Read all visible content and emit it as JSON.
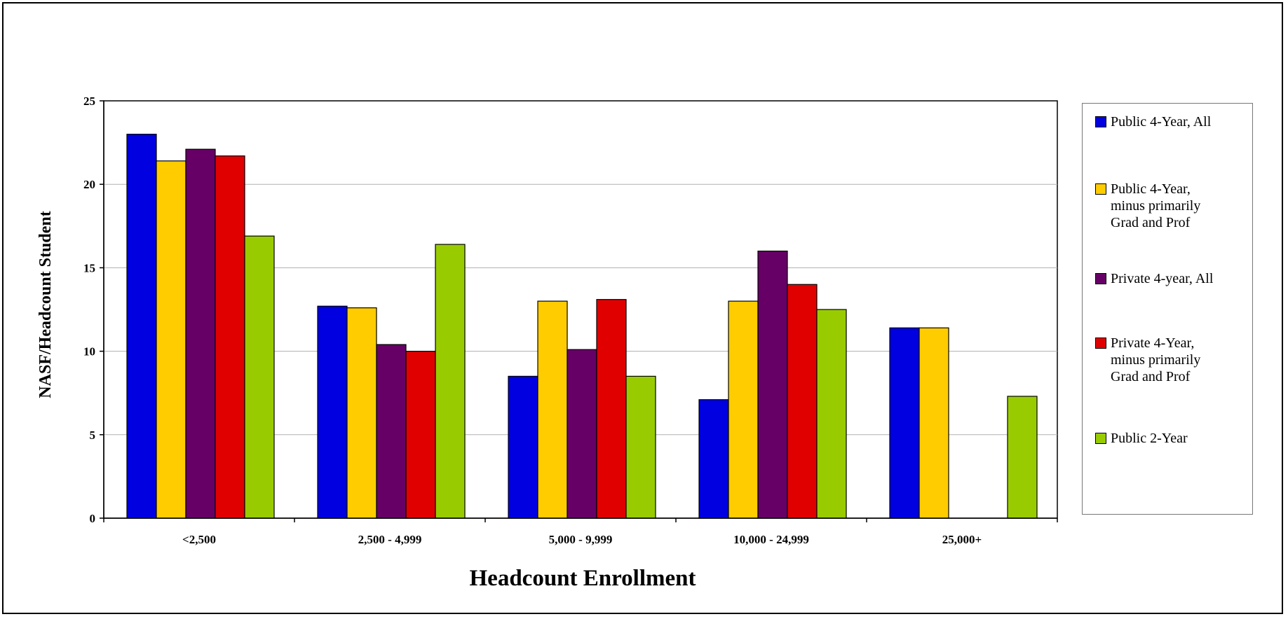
{
  "chart_data": {
    "type": "bar",
    "title": "",
    "xlabel": "Headcount Enrollment",
    "ylabel": "NASF/Headcount Student",
    "ylim": [
      0,
      25
    ],
    "yticks": [
      "0",
      "5",
      "10",
      "15",
      "20",
      "25"
    ],
    "categories": [
      "<2,500",
      "2,500 - 4,999",
      "5,000 - 9,999",
      "10,000 - 24,999",
      "25,000+"
    ],
    "grid": true,
    "legend_position": "right",
    "series": [
      {
        "name": "Public 4-Year, All",
        "color": "#0000e0",
        "values": [
          23.0,
          12.7,
          8.5,
          7.1,
          11.4
        ]
      },
      {
        "name": "Public 4-Year,\nminus primarily\nGrad and Prof",
        "color": "#ffcc00",
        "values": [
          21.4,
          12.6,
          13.0,
          13.0,
          11.4
        ]
      },
      {
        "name": "Private 4-year, All",
        "color": "#660066",
        "values": [
          22.1,
          10.4,
          10.1,
          16.0,
          null
        ]
      },
      {
        "name": "Private 4-Year,\nminus primarily\nGrad and Prof",
        "color": "#e00000",
        "values": [
          21.7,
          10.0,
          13.1,
          14.0,
          null
        ]
      },
      {
        "name": "Public 2-Year",
        "color": "#99cc00",
        "values": [
          16.9,
          16.4,
          8.5,
          12.5,
          7.3
        ]
      }
    ]
  }
}
